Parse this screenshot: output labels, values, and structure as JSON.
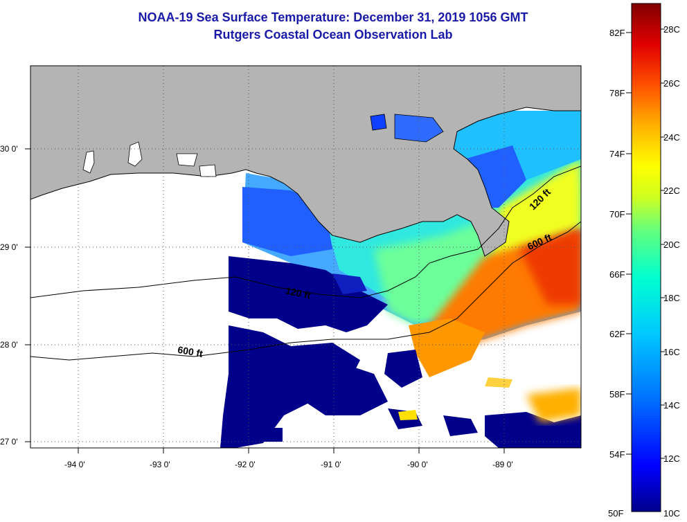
{
  "header": {
    "title": "NOAA-19 Sea Surface Temperature:  December 31, 2019 1056 GMT",
    "subtitle": "Rutgers Coastal Ocean Observation Lab"
  },
  "map": {
    "lon_labels": [
      "-94 0'",
      "-93 0'",
      "-92 0'",
      "-91 0'",
      "-90 0'",
      "-89 0'"
    ],
    "lat_labels": [
      "30 0'",
      "29 0'",
      "28 0'",
      "27 0'"
    ],
    "contour_labels": [
      "120 ft",
      "600 ft",
      "120 ft",
      "600 ft"
    ],
    "colors": {
      "land": "#b4b4b4",
      "coast": "#000000",
      "grid": "#555555"
    }
  },
  "colorbar": {
    "fahrenheit_labels": [
      "82F",
      "78F",
      "74F",
      "70F",
      "66F",
      "62F",
      "58F",
      "54F",
      "50F"
    ],
    "celsius_labels": [
      "28C",
      "26C",
      "24C",
      "22C",
      "20C",
      "18C",
      "16C",
      "14C",
      "12C",
      "10C"
    ],
    "range_c": [
      10,
      29.5
    ],
    "colormap": [
      "#00008b",
      "#0000ff",
      "#0070ff",
      "#00c8ff",
      "#00ffd0",
      "#60ff80",
      "#d0ff20",
      "#ffff00",
      "#ffb000",
      "#ff5000",
      "#e00000",
      "#800000"
    ]
  }
}
